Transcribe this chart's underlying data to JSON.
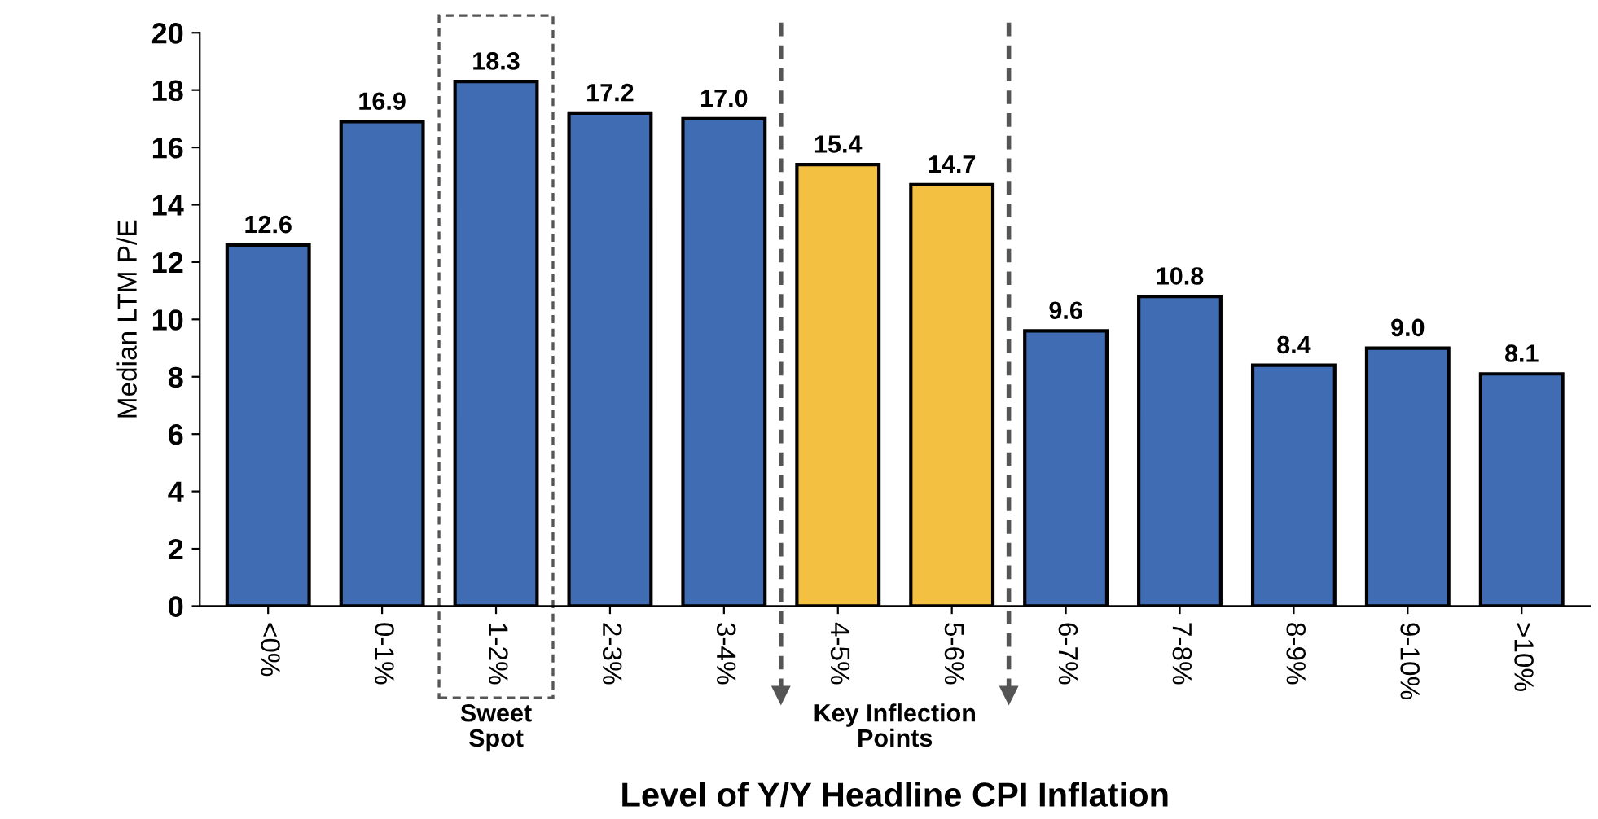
{
  "chart_data": {
    "type": "bar",
    "xlabel": "Level of Y/Y Headline CPI Inflation",
    "ylabel": "Median LTM P/E",
    "categories": [
      "<0%",
      "0-1%",
      "1-2%",
      "2-3%",
      "3-4%",
      "4-5%",
      "5-6%",
      "6-7%",
      "7-8%",
      "8-9%",
      "9-10%",
      ">10%"
    ],
    "values": [
      12.6,
      16.9,
      18.3,
      17.2,
      17.0,
      15.4,
      14.7,
      9.6,
      10.8,
      8.4,
      9.0,
      8.1
    ],
    "colors": [
      "#3f6cb2",
      "#3f6cb2",
      "#3f6cb2",
      "#3f6cb2",
      "#3f6cb2",
      "#f4c042",
      "#f4c042",
      "#3f6cb2",
      "#3f6cb2",
      "#3f6cb2",
      "#3f6cb2",
      "#3f6cb2"
    ],
    "value_labels": [
      "12.6",
      "16.9",
      "18.3",
      "17.2",
      "17.0",
      "15.4",
      "14.7",
      "9.6",
      "10.8",
      "8.4",
      "9.0",
      "8.1"
    ],
    "ylim": [
      0,
      20
    ],
    "yticks": [
      0,
      2,
      4,
      6,
      8,
      10,
      12,
      14,
      16,
      18,
      20
    ],
    "grid": false,
    "legend": false,
    "annotations": [
      "Sweet\nSpot",
      "Key Inflection\nPoints"
    ]
  }
}
